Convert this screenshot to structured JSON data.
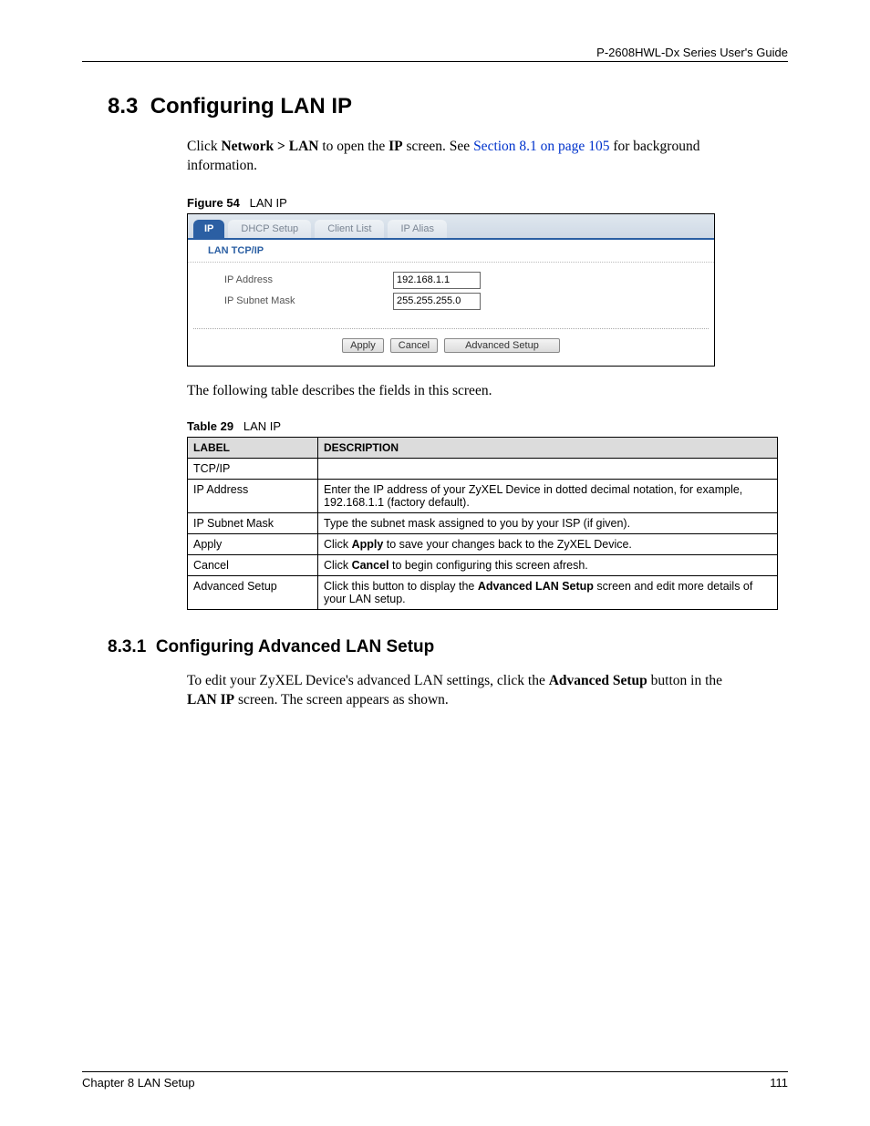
{
  "header": {
    "guide_title": "P-2608HWL-Dx Series User's Guide"
  },
  "section": {
    "number": "8.3",
    "title": "Configuring LAN IP",
    "intro_pre": "Click ",
    "intro_nav": "Network > LAN",
    "intro_mid1": " to open the ",
    "intro_ip": "IP",
    "intro_mid2": " screen. See ",
    "intro_link": "Section 8.1 on page 105",
    "intro_post": " for background information."
  },
  "figure": {
    "number": "Figure 54",
    "caption": "LAN IP",
    "tabs": [
      "IP",
      "DHCP Setup",
      "Client List",
      "IP Alias"
    ],
    "active_tab_index": 0,
    "group_heading": "LAN TCP/IP",
    "fields": {
      "ip_address_label": "IP Address",
      "ip_address_value": "192.168.1.1",
      "subnet_label": "IP Subnet Mask",
      "subnet_value": "255.255.255.0"
    },
    "buttons": {
      "apply": "Apply",
      "cancel": "Cancel",
      "advanced": "Advanced Setup"
    },
    "colors": {
      "tab_active_bg": "#2b5fa3",
      "tab_active_fg": "#ffffff",
      "tab_inactive_fg": "#7a8593"
    }
  },
  "midtext": "The following table describes the fields in this screen.",
  "table": {
    "number": "Table 29",
    "caption": "LAN IP",
    "columns": [
      "LABEL",
      "DESCRIPTION"
    ],
    "rows": [
      {
        "label": "TCP/IP",
        "desc_pre": "",
        "desc_bold": "",
        "desc_post": ""
      },
      {
        "label": "IP Address",
        "desc_pre": "Enter the IP address of your ZyXEL Device in dotted decimal notation, for example, 192.168.1.1 (factory default).",
        "desc_bold": "",
        "desc_post": ""
      },
      {
        "label": "IP Subnet Mask",
        "desc_pre": "Type the subnet mask assigned to you by your ISP (if given).",
        "desc_bold": "",
        "desc_post": ""
      },
      {
        "label": "Apply",
        "desc_pre": "Click ",
        "desc_bold": "Apply",
        "desc_post": " to save your changes back to the ZyXEL Device."
      },
      {
        "label": "Cancel",
        "desc_pre": "Click ",
        "desc_bold": "Cancel",
        "desc_post": " to begin configuring this screen afresh."
      },
      {
        "label": "Advanced Setup",
        "desc_pre": "Click this button to display the ",
        "desc_bold": "Advanced LAN Setup",
        "desc_post": " screen and edit more details of your LAN setup."
      }
    ]
  },
  "subsection": {
    "number": "8.3.1",
    "title": "Configuring Advanced LAN Setup",
    "body_pre": "To edit your ZyXEL Device's advanced LAN settings, click the ",
    "body_bold1": "Advanced Setup",
    "body_mid": " button in the ",
    "body_bold2": "LAN IP",
    "body_post": " screen. The screen appears as shown."
  },
  "footer": {
    "chapter": "Chapter 8 LAN Setup",
    "page": "111"
  }
}
